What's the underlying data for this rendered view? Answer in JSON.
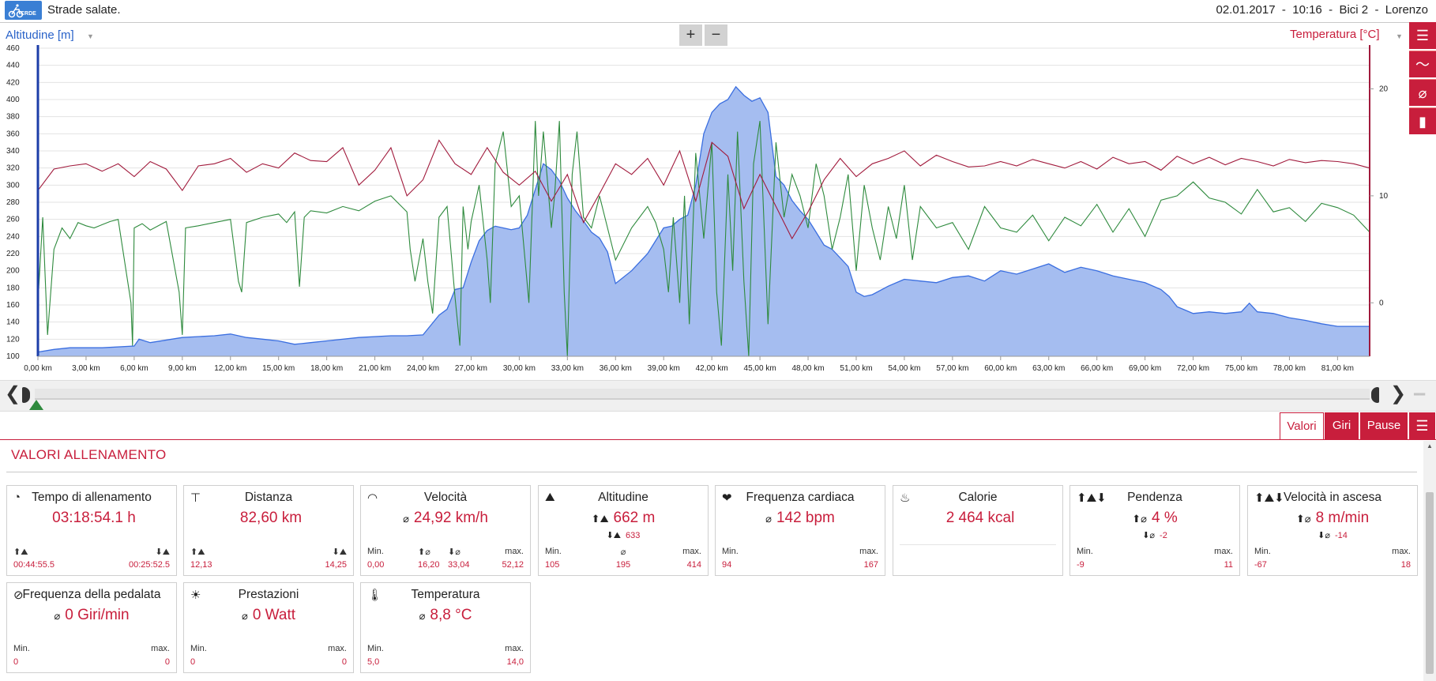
{
  "header": {
    "logo_text": "CRDE",
    "title": "Strade salate.",
    "meta": "02.01.2017  -  10:16  -  Bici 2  -  Lorenzo"
  },
  "chart_controls": {
    "left_axis_label": "Altitudine [m]",
    "right_axis_label": "Temperatura [°C]",
    "zoom_in": "+",
    "zoom_out": "−"
  },
  "side_toolbar": {
    "icons": [
      "list-icon",
      "line-chart-icon",
      "average-icon",
      "bar-chart-icon"
    ],
    "glyphs": [
      "☰",
      "〜",
      "⌀",
      "▮"
    ]
  },
  "chart_data": {
    "type": "area",
    "xlabel": "",
    "ylabel": "Altitudine [m]",
    "y2label": "Temperatura [°C]",
    "x_unit": "km",
    "xlim": [
      0,
      83
    ],
    "ylim": [
      100,
      460
    ],
    "y2lim": [
      -5,
      23.8
    ],
    "x_ticks": [
      "0,00 km",
      "3,00 km",
      "6,00 km",
      "9,00 km",
      "12,00 km",
      "15,00 km",
      "18,00 km",
      "21,00 km",
      "24,00 km",
      "27,00 km",
      "30,00 km",
      "33,00 km",
      "36,00 km",
      "39,00 km",
      "42,00 km",
      "45,00 km",
      "48,00 km",
      "51,00 km",
      "54,00 km",
      "57,00 km",
      "60,00 km",
      "63,00 km",
      "66,00 km",
      "69,00 km",
      "72,00 km",
      "75,00 km",
      "78,00 km",
      "81,00 km"
    ],
    "y_ticks": [
      "100",
      "120",
      "140",
      "160",
      "180",
      "200",
      "220",
      "240",
      "260",
      "280",
      "300",
      "320",
      "340",
      "360",
      "380",
      "400",
      "420",
      "440",
      "460"
    ],
    "y2_ticks": [
      "0",
      "10",
      "20"
    ],
    "grid": true,
    "series": [
      {
        "color": "#3a6ee0",
        "fill": "#a5bdf0",
        "axis": "left",
        "x": [
          0,
          1,
          2,
          4,
          6,
          6.3,
          7,
          9,
          11,
          12,
          13,
          14,
          15,
          16,
          17,
          18,
          20,
          22,
          23,
          24,
          25,
          25.5,
          26,
          26.5,
          27,
          27.5,
          28,
          28.5,
          29,
          29.5,
          30,
          30.5,
          31,
          31.5,
          32,
          32.5,
          33,
          33.5,
          34,
          34.5,
          35,
          35.5,
          36,
          37,
          38,
          39,
          39.5,
          40,
          40.5,
          41,
          41.5,
          42,
          42.5,
          43,
          43.5,
          44,
          44.5,
          45,
          45.5,
          46,
          46.5,
          47,
          47.5,
          48,
          48.5,
          49,
          49.5,
          50,
          50.5,
          51,
          51.5,
          52,
          53,
          54,
          55,
          56,
          57,
          58,
          59,
          60,
          61,
          62,
          63,
          64,
          65,
          66,
          67,
          68,
          69,
          70,
          70.5,
          71,
          71.5,
          72,
          73,
          74,
          75,
          75.5,
          76,
          77,
          78,
          79,
          80,
          81,
          82,
          83
        ],
        "values": [
          105,
          108,
          110,
          110,
          112,
          120,
          116,
          122,
          124,
          126,
          122,
          120,
          118,
          114,
          116,
          118,
          122,
          124,
          124,
          125,
          148,
          155,
          178,
          180,
          210,
          235,
          247,
          252,
          250,
          248,
          250,
          265,
          295,
          325,
          318,
          305,
          285,
          270,
          258,
          245,
          238,
          222,
          185,
          200,
          220,
          250,
          252,
          260,
          265,
          300,
          360,
          385,
          395,
          400,
          415,
          405,
          398,
          402,
          385,
          310,
          300,
          282,
          270,
          260,
          245,
          230,
          225,
          215,
          205,
          175,
          170,
          172,
          182,
          190,
          188,
          186,
          192,
          194,
          188,
          200,
          196,
          202,
          208,
          198,
          204,
          200,
          194,
          190,
          186,
          178,
          170,
          158,
          154,
          150,
          152,
          150,
          152,
          162,
          152,
          150,
          145,
          142,
          138,
          135,
          135,
          135
        ]
      },
      {
        "color": "#a11a3c",
        "axis": "right",
        "x": [
          0,
          1,
          2,
          3,
          4,
          5,
          6,
          7,
          8,
          9,
          10,
          11,
          12,
          13,
          14,
          15,
          16,
          17,
          18,
          19,
          20,
          21,
          22,
          23,
          24,
          25,
          26,
          27,
          28,
          29,
          30,
          31,
          32,
          33,
          34,
          35,
          36,
          37,
          38,
          39,
          40,
          41,
          42,
          43,
          44,
          45,
          46,
          47,
          48,
          49,
          50,
          51,
          52,
          53,
          54,
          55,
          56,
          57,
          58,
          59,
          60,
          61,
          62,
          63,
          64,
          65,
          66,
          67,
          68,
          69,
          70,
          71,
          72,
          73,
          74,
          75,
          76,
          77,
          78,
          79,
          80,
          81,
          82,
          83
        ],
        "values": [
          10.5,
          12.5,
          12.8,
          13,
          12.3,
          13,
          11.8,
          13.2,
          12.5,
          10.5,
          12.8,
          13,
          13.5,
          12.2,
          13,
          12.6,
          14,
          13.3,
          13.2,
          14.5,
          11,
          12.4,
          14.5,
          10,
          11.5,
          15.2,
          13,
          12,
          14.5,
          12.2,
          11,
          12.3,
          9.5,
          12,
          7.5,
          10.2,
          13,
          12,
          13.5,
          11,
          14.2,
          9.5,
          15,
          13.7,
          8.8,
          12,
          9,
          6,
          8.5,
          11.5,
          13.5,
          11.8,
          13,
          13.5,
          14.2,
          12.8,
          13.8,
          13.2,
          12.7,
          12.8,
          13.2,
          12.8,
          13.4,
          13,
          12.6,
          13.2,
          12.5,
          13.6,
          13,
          13.2,
          12.4,
          13.7,
          13,
          13.6,
          12.9,
          13.5,
          13.2,
          12.8,
          13.4,
          13.1,
          13.3,
          13.2,
          13,
          12.6
        ]
      },
      {
        "color": "#2e8a3d",
        "axis": "right",
        "x": [
          0,
          0.3,
          0.6,
          1,
          1.5,
          2,
          2.5,
          3,
          3.5,
          4,
          4.5,
          5,
          5.8,
          5.9,
          6,
          6.5,
          7,
          8,
          8.8,
          9,
          9.2,
          10,
          11,
          12,
          12.5,
          12.7,
          13,
          14,
          15,
          15.5,
          16,
          16.3,
          16.6,
          17,
          18,
          19,
          20,
          21,
          22,
          23,
          23.2,
          23.5,
          24,
          24.3,
          24.6,
          25,
          25.5,
          26,
          26.3,
          26.5,
          26.8,
          27,
          27.5,
          28,
          28.2,
          28.5,
          29,
          29.5,
          30,
          30.3,
          30.6,
          31,
          31.2,
          31.5,
          32,
          32.2,
          32.5,
          32.8,
          33,
          33.3,
          33.6,
          34,
          34.5,
          35,
          36,
          37,
          38,
          38.5,
          39,
          39.3,
          39.6,
          40,
          40.3,
          40.6,
          41,
          41.5,
          42,
          42.3,
          42.6,
          43,
          43.3,
          43.6,
          44,
          44.3,
          44.6,
          45,
          45.5,
          46,
          46.5,
          47,
          47.5,
          48,
          48.5,
          49,
          49.5,
          50,
          50.5,
          51,
          51.5,
          52,
          52.5,
          53,
          53.5,
          54,
          54.5,
          55,
          56,
          57,
          58,
          59,
          60,
          61,
          62,
          63,
          64,
          65,
          66,
          67,
          68,
          69,
          70,
          71,
          72,
          73,
          74,
          75,
          76,
          77,
          78,
          79,
          80,
          81,
          82,
          83
        ],
        "values": [
          0,
          8,
          -3,
          5,
          7,
          6,
          7.5,
          7.2,
          7,
          7.3,
          7.6,
          7.8,
          0,
          -4,
          7,
          7.4,
          6.8,
          7.6,
          1,
          -3,
          7,
          7.2,
          7.5,
          7.8,
          2,
          1,
          7.5,
          8,
          8.3,
          7.5,
          8.5,
          1.5,
          8,
          8.6,
          8.4,
          9,
          8.6,
          9.5,
          10,
          8.5,
          5,
          2,
          6,
          2,
          -1,
          8,
          9,
          0.5,
          -4,
          9,
          5,
          7.6,
          11,
          4,
          0,
          13,
          16,
          9,
          10,
          5,
          0,
          17,
          10,
          16,
          7,
          10,
          17,
          1,
          -5,
          12,
          16,
          8,
          7,
          10,
          4,
          7,
          9,
          7.5,
          5,
          1,
          8,
          0,
          10,
          -2,
          14,
          6,
          15,
          1,
          -4,
          12,
          3,
          16,
          2,
          -5,
          13,
          17,
          -2,
          15,
          8,
          12,
          10,
          7,
          13,
          10,
          5,
          8,
          12,
          3,
          11,
          7,
          4,
          9,
          6,
          11,
          4,
          9,
          7,
          7.5,
          5,
          9,
          7,
          6.6,
          8.2,
          5.8,
          8,
          7.2,
          9.2,
          6.6,
          8.8,
          6.2,
          9.6,
          10,
          11.3,
          9.8,
          9.4,
          8.3,
          10.6,
          8.5,
          8.9,
          7.6,
          9.3,
          8.9,
          8.2,
          6.6
        ]
      }
    ]
  },
  "scroller": {
    "left_arrow": "❮",
    "right_arrow": "❯",
    "collapse": "══"
  },
  "tabs": [
    {
      "label": "Valori",
      "active": true
    },
    {
      "label": "Giri",
      "active": false
    },
    {
      "label": "Pause",
      "active": false
    }
  ],
  "section": {
    "title": "VALORI ALLENAMENTO"
  },
  "cards": [
    {
      "icon": "clock-icon",
      "glyph": "◔",
      "title": "Tempo di allenamento",
      "main": "03:18:54.1 h",
      "main_prefix": "",
      "sub": "",
      "sub_prefix": "",
      "labels": [
        "⬆⛰",
        "",
        "⬇⛰"
      ],
      "values": [
        "00:44:55.5",
        "",
        "00:25:52.5"
      ]
    },
    {
      "icon": "signpost-icon",
      "glyph": "⊤",
      "title": "Distanza",
      "main": "82,60 km",
      "main_prefix": "",
      "sub": "",
      "sub_prefix": "",
      "labels": [
        "⬆⛰",
        "",
        "⬇⛰"
      ],
      "values": [
        "12,13",
        "",
        "14,25"
      ]
    },
    {
      "icon": "speedometer-icon",
      "glyph": "◠",
      "title": "Velocità",
      "main": "24,92 km/h",
      "main_prefix": "⌀",
      "sub": "",
      "sub_prefix": "",
      "labels": [
        "Min.",
        "⬆⌀",
        "⬇⌀",
        "max."
      ],
      "values": [
        "0,00",
        "16,20",
        "33,04",
        "52,12"
      ]
    },
    {
      "icon": "mountain-icon",
      "glyph": "⛰",
      "title": "Altitudine",
      "main": "662 m",
      "main_prefix": "⬆⛰",
      "sub": "633",
      "sub_prefix": "⬇⛰",
      "labels": [
        "Min.",
        "⌀",
        "max."
      ],
      "values": [
        "105",
        "195",
        "414"
      ]
    },
    {
      "icon": "heart-icon",
      "glyph": "❤",
      "title": "Frequenza cardiaca",
      "main": "142 bpm",
      "main_prefix": "⌀",
      "sub": "",
      "sub_prefix": "",
      "labels": [
        "Min.",
        "",
        "max."
      ],
      "values": [
        "94",
        "",
        "167"
      ]
    },
    {
      "icon": "flame-icon",
      "glyph": "♨",
      "title": "Calorie",
      "main": "2 464 kcal",
      "main_prefix": "",
      "sub": "",
      "sub_prefix": "",
      "labels": [
        "",
        "",
        ""
      ],
      "values": [
        "",
        "",
        ""
      ]
    },
    {
      "icon": "slope-icon",
      "glyph": "⬆⛰⬇",
      "title": "Pendenza",
      "main": "4 %",
      "main_prefix": "⬆⌀",
      "sub": "-2",
      "sub_prefix": "⬇⌀",
      "labels": [
        "Min.",
        "",
        "max."
      ],
      "values": [
        "-9",
        "",
        "11"
      ]
    },
    {
      "icon": "climb-speed-icon",
      "glyph": "⬆⛰⬇",
      "title": "Velocità in ascesa",
      "main": "8 m/min",
      "main_prefix": "⬆⌀",
      "sub": "-14",
      "sub_prefix": "⬇⌀",
      "labels": [
        "Min.",
        "",
        "max."
      ],
      "values": [
        "-67",
        "",
        "18"
      ]
    },
    {
      "icon": "cadence-icon",
      "glyph": "⊘",
      "title": "Frequenza della pedalata",
      "main": "0 Giri/min",
      "main_prefix": "⌀",
      "sub": "",
      "sub_prefix": "",
      "labels": [
        "Min.",
        "",
        "max."
      ],
      "values": [
        "0",
        "",
        "0"
      ]
    },
    {
      "icon": "sun-icon",
      "glyph": "☀",
      "title": "Prestazioni",
      "main": "0 Watt",
      "main_prefix": "⌀",
      "sub": "",
      "sub_prefix": "",
      "labels": [
        "Min.",
        "",
        "max."
      ],
      "values": [
        "0",
        "",
        "0"
      ]
    },
    {
      "icon": "thermometer-icon",
      "glyph": "🌡",
      "title": "Temperatura",
      "main": "8,8 °C",
      "main_prefix": "⌀",
      "sub": "",
      "sub_prefix": "",
      "labels": [
        "Min.",
        "",
        "max."
      ],
      "values": [
        "5,0",
        "",
        "14,0"
      ]
    }
  ]
}
